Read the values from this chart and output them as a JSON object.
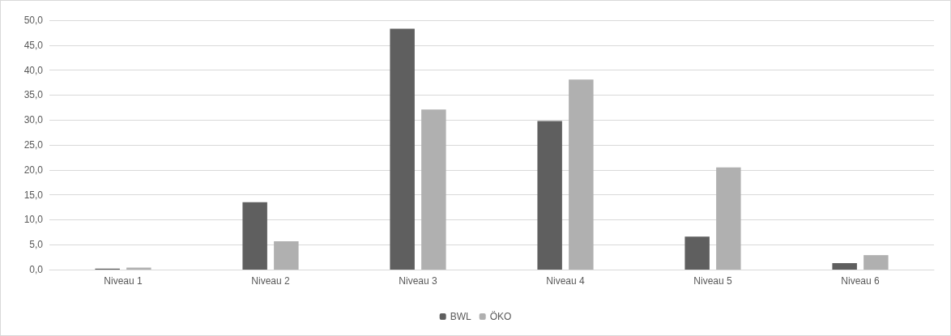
{
  "chart_data": {
    "type": "bar",
    "categories": [
      "Niveau 1",
      "Niveau 2",
      "Niveau 3",
      "Niveau 4",
      "Niveau 5",
      "Niveau 6"
    ],
    "series": [
      {
        "name": "BWL",
        "color": "#5f5f5f",
        "values": [
          0.2,
          13.5,
          48.3,
          29.8,
          6.6,
          1.3
        ]
      },
      {
        "name": "ÖKO",
        "color": "#b0b0b0",
        "values": [
          0.4,
          5.7,
          32.1,
          38.1,
          20.5,
          2.9
        ]
      }
    ],
    "ylim": [
      0,
      50
    ],
    "yticks": [
      {
        "value": 0,
        "label": "0,0"
      },
      {
        "value": 5,
        "label": "5,0"
      },
      {
        "value": 10,
        "label": "10,0"
      },
      {
        "value": 15,
        "label": "15,0"
      },
      {
        "value": 20,
        "label": "20,0"
      },
      {
        "value": 25,
        "label": "25,0"
      },
      {
        "value": 30,
        "label": "30,0"
      },
      {
        "value": 35,
        "label": "35,0"
      },
      {
        "value": 40,
        "label": "40,0"
      },
      {
        "value": 45,
        "label": "45,0"
      },
      {
        "value": 50,
        "label": "50,0"
      }
    ],
    "grid": "y",
    "legend": "bottom"
  }
}
